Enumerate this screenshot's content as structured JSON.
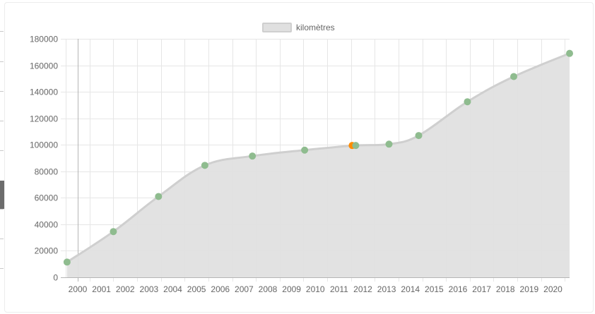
{
  "chart_data": {
    "type": "area",
    "legend": {
      "label": "kilomètres",
      "position": "top-center"
    },
    "x_axis": {
      "ticks": [
        "2000",
        "2001",
        "2002",
        "2003",
        "2004",
        "2005",
        "2006",
        "2007",
        "2008",
        "2009",
        "2010",
        "2011",
        "2012",
        "2013",
        "2014",
        "2015",
        "2016",
        "2017",
        "2018",
        "2019",
        "2020"
      ],
      "range": [
        1999.5,
        2020.7
      ]
    },
    "y_axis": {
      "ticks": [
        0,
        20000,
        40000,
        60000,
        80000,
        100000,
        120000,
        140000,
        160000,
        180000
      ],
      "range": [
        0,
        180000
      ]
    },
    "grid": true,
    "series": [
      {
        "name": "kilomètres",
        "x": [
          1999.55,
          2001.5,
          2003.4,
          2005.35,
          2007.35,
          2009.55,
          2011.7,
          2013.1,
          2014.35,
          2016.4,
          2018.35,
          2020.7
        ],
        "y": [
          11500,
          34500,
          61000,
          84500,
          91500,
          96000,
          99500,
          100500,
          107000,
          132500,
          151500,
          169000
        ]
      }
    ],
    "highlight_point": {
      "x": 2011.55,
      "y": 99500
    },
    "colors": {
      "fill": "#e0e0e0",
      "line": "#cfcfcf",
      "point": "#8fbc8f",
      "highlight": "#ff8c00",
      "grid": "#e6e6e6",
      "axis": "#b5b5b5",
      "text": "#666666"
    }
  }
}
